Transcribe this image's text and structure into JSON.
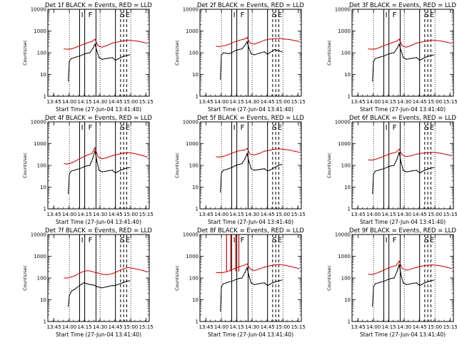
{
  "chart_data": {
    "type": "line",
    "layout": "3x3 grid of detector panels",
    "title_template": "Det {det}f BLACK = Events, RED = LLD",
    "ylabel": "Counts/sec",
    "xlabel": "Start Time (27-Jun-04 13:41:40)",
    "yscale": "log",
    "ylim": [
      1,
      10000
    ],
    "ytick_labels": [
      "1",
      "10",
      "100",
      "1000",
      "10000"
    ],
    "ytick_values": [
      1,
      10,
      100,
      1000,
      10000
    ],
    "xlim_minutes": [
      -3,
      96
    ],
    "xtick_labels": [
      "13:45",
      "14:00",
      "14:15",
      "14:30",
      "14:45",
      "15:00",
      "15:15"
    ],
    "xtick_values_minutes": [
      3,
      18,
      33,
      48,
      63,
      78,
      93
    ],
    "event_markers": {
      "dotted_minutes": [
        18,
        48,
        78
      ],
      "solid_minutes": [
        28,
        33,
        44,
        63
      ],
      "dashed_minutes": [
        68,
        71,
        74
      ],
      "labels": [
        {
          "text": "I",
          "at_minute": 30.5
        },
        {
          "text": "F",
          "at_minute": 38.5
        },
        {
          "text": "S",
          "at_minute": 70
        },
        {
          "text": "E",
          "at_minute": 75
        }
      ]
    },
    "panels": [
      {
        "det": "1",
        "series": [
          {
            "name": "Events",
            "color": "#000000",
            "x": [
              17,
              18,
              20,
              23,
              25,
              28,
              32,
              35,
              38,
              41,
              43,
              45,
              47,
              50,
              55,
              60,
              63,
              65,
              68,
              70,
              72,
              74,
              77
            ],
            "y": [
              5,
              40,
              55,
              60,
              65,
              70,
              85,
              95,
              100,
              160,
              250,
              120,
              60,
              50,
              55,
              60,
              45,
              50,
              60,
              65,
              70,
              75,
              80
            ]
          },
          {
            "name": "LLD",
            "color": "#cc0000",
            "x": [
              13,
              16,
              20,
              24,
              28,
              32,
              36,
              40,
              43,
              46,
              50,
              55,
              60,
              65,
              70,
              75,
              80,
              85,
              90,
              94
            ],
            "y": [
              150,
              145,
              150,
              175,
              210,
              245,
              290,
              330,
              420,
              210,
              180,
              220,
              280,
              310,
              350,
              380,
              360,
              340,
              300,
              270
            ]
          }
        ]
      },
      {
        "det": "2",
        "series": [
          {
            "name": "Events",
            "color": "#000000",
            "x": [
              17,
              18,
              20,
              23,
              25,
              28,
              32,
              35,
              38,
              41,
              43,
              45,
              47,
              50,
              55,
              60,
              63,
              65,
              68,
              70,
              72,
              74,
              77
            ],
            "y": [
              6,
              80,
              100,
              95,
              90,
              100,
              130,
              140,
              150,
              220,
              320,
              160,
              90,
              80,
              95,
              110,
              85,
              100,
              120,
              140,
              130,
              125,
              110
            ]
          },
          {
            "name": "LLD",
            "color": "#cc0000",
            "x": [
              13,
              16,
              20,
              24,
              28,
              32,
              36,
              40,
              43,
              46,
              50,
              55,
              60,
              65,
              70,
              75,
              80,
              85,
              90,
              94
            ],
            "y": [
              200,
              190,
              210,
              230,
              280,
              330,
              380,
              420,
              500,
              280,
              250,
              300,
              380,
              420,
              450,
              460,
              420,
              400,
              360,
              330
            ]
          }
        ]
      },
      {
        "det": "3",
        "series": [
          {
            "name": "Events",
            "color": "#000000",
            "x": [
              17,
              18,
              20,
              23,
              25,
              28,
              32,
              35,
              38,
              41,
              43,
              45,
              47,
              50,
              55,
              60,
              63,
              65,
              68,
              70,
              72,
              74,
              77
            ],
            "y": [
              5,
              40,
              55,
              60,
              65,
              70,
              85,
              95,
              100,
              160,
              250,
              120,
              60,
              50,
              55,
              60,
              45,
              50,
              60,
              65,
              70,
              75,
              80
            ]
          },
          {
            "name": "LLD",
            "color": "#cc0000",
            "x": [
              13,
              16,
              20,
              24,
              28,
              32,
              36,
              40,
              43,
              46,
              50,
              55,
              60,
              65,
              70,
              75,
              80,
              85,
              90,
              94
            ],
            "y": [
              150,
              145,
              150,
              175,
              210,
              245,
              290,
              330,
              420,
              210,
              180,
              220,
              280,
              310,
              350,
              380,
              360,
              340,
              300,
              270
            ]
          }
        ]
      },
      {
        "det": "4",
        "series": [
          {
            "name": "Events",
            "color": "#000000",
            "x": [
              17,
              18,
              20,
              23,
              25,
              28,
              32,
              35,
              38,
              41,
              43,
              45,
              47,
              50,
              55,
              60,
              63,
              65,
              68,
              70,
              72,
              74,
              77
            ],
            "y": [
              5,
              40,
              55,
              60,
              65,
              70,
              85,
              95,
              100,
              220,
              480,
              150,
              60,
              50,
              55,
              60,
              45,
              50,
              60,
              65,
              70,
              75,
              80
            ]
          },
          {
            "name": "LLD",
            "color": "#cc0000",
            "x": [
              13,
              16,
              20,
              24,
              28,
              32,
              36,
              40,
              43,
              46,
              50,
              55,
              60,
              65,
              70,
              75,
              80,
              85,
              90,
              94
            ],
            "y": [
              120,
              115,
              130,
              160,
              200,
              250,
              300,
              350,
              650,
              250,
              200,
              230,
              280,
              320,
              360,
              380,
              360,
              320,
              280,
              240
            ]
          }
        ]
      },
      {
        "det": "5",
        "series": [
          {
            "name": "Events",
            "color": "#000000",
            "x": [
              17,
              18,
              20,
              23,
              25,
              28,
              32,
              35,
              38,
              41,
              43,
              45,
              47,
              50,
              55,
              60,
              63,
              65,
              68,
              70,
              72,
              74,
              77
            ],
            "y": [
              6,
              45,
              60,
              65,
              70,
              80,
              100,
              110,
              120,
              200,
              350,
              140,
              70,
              60,
              65,
              70,
              55,
              60,
              70,
              80,
              90,
              100,
              110
            ]
          },
          {
            "name": "LLD",
            "color": "#cc0000",
            "x": [
              13,
              16,
              20,
              24,
              28,
              32,
              36,
              40,
              43,
              46,
              50,
              55,
              60,
              65,
              70,
              75,
              80,
              85,
              90,
              94
            ],
            "y": [
              250,
              240,
              260,
              300,
              360,
              420,
              480,
              500,
              600,
              330,
              300,
              350,
              450,
              500,
              560,
              580,
              540,
              500,
              440,
              400
            ]
          }
        ]
      },
      {
        "det": "6",
        "series": [
          {
            "name": "Events",
            "color": "#000000",
            "x": [
              17,
              18,
              20,
              23,
              25,
              28,
              32,
              35,
              38,
              41,
              43,
              45,
              47,
              50,
              55,
              60,
              63,
              65,
              68,
              70,
              72,
              74,
              77
            ],
            "y": [
              5,
              40,
              55,
              60,
              65,
              70,
              85,
              95,
              100,
              200,
              400,
              130,
              60,
              50,
              55,
              60,
              45,
              50,
              60,
              65,
              70,
              75,
              80
            ]
          },
          {
            "name": "LLD",
            "color": "#cc0000",
            "x": [
              13,
              16,
              20,
              24,
              28,
              32,
              36,
              40,
              43,
              46,
              50,
              55,
              60,
              65,
              70,
              75,
              80,
              85,
              90,
              94
            ],
            "y": [
              180,
              175,
              190,
              220,
              260,
              310,
              360,
              400,
              560,
              300,
              250,
              280,
              330,
              360,
              380,
              400,
              380,
              350,
              310,
              280
            ]
          }
        ]
      },
      {
        "det": "7",
        "series": [
          {
            "name": "Events",
            "color": "#000000",
            "x": [
              17,
              18,
              20,
              23,
              25,
              28,
              32,
              35,
              38,
              41,
              43,
              45,
              47,
              50,
              55,
              60,
              63,
              65,
              68,
              70,
              72,
              74,
              77
            ],
            "y": [
              5,
              15,
              25,
              30,
              35,
              45,
              60,
              55,
              50,
              48,
              45,
              40,
              38,
              35,
              40,
              45,
              45,
              50,
              55,
              60,
              65,
              70,
              75
            ]
          },
          {
            "name": "LLD",
            "color": "#cc0000",
            "x": [
              13,
              16,
              20,
              24,
              28,
              32,
              36,
              40,
              43,
              46,
              50,
              55,
              60,
              65,
              70,
              75,
              80,
              85,
              90,
              94
            ],
            "y": [
              100,
              100,
              110,
              130,
              170,
              200,
              220,
              200,
              180,
              170,
              150,
              140,
              160,
              200,
              260,
              300,
              280,
              250,
              220,
              190
            ]
          }
        ]
      },
      {
        "det": "8",
        "series": [
          {
            "name": "Events",
            "color": "#000000",
            "x": [
              17,
              18,
              20,
              23,
              25,
              28,
              32,
              35,
              38,
              41,
              43,
              45,
              47,
              50,
              55,
              60,
              63,
              65,
              68,
              70,
              72,
              74,
              77
            ],
            "y": [
              3,
              40,
              55,
              60,
              65,
              70,
              85,
              95,
              100,
              180,
              300,
              120,
              60,
              50,
              55,
              60,
              45,
              50,
              60,
              65,
              70,
              75,
              80
            ]
          },
          {
            "name": "LLD",
            "color": "#cc0000",
            "x": [
              13,
              16,
              20,
              24,
              28,
              32,
              36,
              40,
              43,
              46,
              50,
              55,
              60,
              65,
              70,
              75,
              80,
              85,
              90,
              94
            ],
            "y": [
              180,
              175,
              180,
              200,
              240,
              290,
              340,
              380,
              450,
              260,
              220,
              260,
              320,
              360,
              400,
              420,
              380,
              340,
              300,
              260
            ]
          },
          {
            "name": "LLD spikes",
            "color": "#cc0000",
            "x": [
              23,
              27,
              32,
              35
            ],
            "y": [
              10000,
              10000,
              10000,
              10000
            ]
          }
        ]
      },
      {
        "det": "9",
        "series": [
          {
            "name": "Events",
            "color": "#000000",
            "x": [
              17,
              18,
              20,
              23,
              25,
              28,
              32,
              35,
              38,
              41,
              43,
              45,
              47,
              50,
              55,
              60,
              63,
              65,
              68,
              70,
              72,
              74,
              77
            ],
            "y": [
              5,
              40,
              55,
              60,
              65,
              70,
              85,
              95,
              100,
              200,
              420,
              130,
              60,
              50,
              55,
              60,
              45,
              50,
              60,
              65,
              70,
              75,
              80
            ]
          },
          {
            "name": "LLD",
            "color": "#cc0000",
            "x": [
              13,
              16,
              20,
              24,
              28,
              32,
              36,
              40,
              43,
              46,
              50,
              55,
              60,
              65,
              70,
              75,
              80,
              85,
              90,
              94
            ],
            "y": [
              150,
              145,
              160,
              190,
              230,
              280,
              330,
              370,
              600,
              280,
              230,
              260,
              310,
              350,
              380,
              400,
              380,
              350,
              310,
              270
            ]
          }
        ]
      }
    ]
  }
}
